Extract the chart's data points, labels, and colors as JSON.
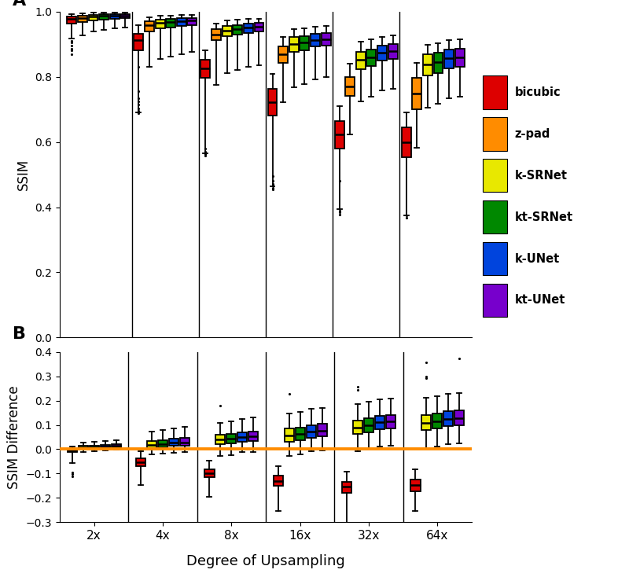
{
  "upsampling_factors": [
    "2x",
    "4x",
    "8x",
    "16x",
    "32x",
    "64x"
  ],
  "methods": [
    "bicubic",
    "z-pad",
    "k-SRNet",
    "kt-SRNet",
    "k-UNet",
    "kt-UNet"
  ],
  "colors": [
    "#dd0000",
    "#ff8c00",
    "#e8e800",
    "#008800",
    "#0044dd",
    "#7700cc"
  ],
  "panel_A": {
    "ylabel": "SSIM",
    "ylim": [
      0.0,
      1.0
    ],
    "yticks": [
      0.0,
      0.2,
      0.4,
      0.6,
      0.8,
      1.0
    ],
    "boxes": {
      "2x": {
        "bicubic": {
          "q1": 0.963,
          "med": 0.977,
          "q3": 0.984,
          "whislo": 0.918,
          "whishi": 0.993,
          "fliers_low": [
            0.87,
            0.88,
            0.885,
            0.895,
            0.905,
            0.91
          ],
          "fliers_high": []
        },
        "z-pad": {
          "q1": 0.968,
          "med": 0.981,
          "q3": 0.988,
          "whislo": 0.928,
          "whishi": 0.995,
          "fliers_low": [],
          "fliers_high": []
        },
        "k-SRNet": {
          "q1": 0.972,
          "med": 0.984,
          "q3": 0.99,
          "whislo": 0.938,
          "whishi": 0.996,
          "fliers_low": [],
          "fliers_high": []
        },
        "kt-SRNet": {
          "q1": 0.975,
          "med": 0.986,
          "q3": 0.991,
          "whislo": 0.944,
          "whishi": 0.997,
          "fliers_low": [],
          "fliers_high": []
        },
        "k-UNet": {
          "q1": 0.977,
          "med": 0.987,
          "q3": 0.992,
          "whislo": 0.948,
          "whishi": 0.997,
          "fliers_low": [],
          "fliers_high": []
        },
        "kt-UNet": {
          "q1": 0.979,
          "med": 0.988,
          "q3": 0.993,
          "whislo": 0.95,
          "whishi": 0.998,
          "fliers_low": [],
          "fliers_high": []
        }
      },
      "4x": {
        "bicubic": {
          "q1": 0.882,
          "med": 0.912,
          "q3": 0.932,
          "whislo": 0.69,
          "whishi": 0.958,
          "fliers_low": [
            0.687,
            0.695,
            0.703,
            0.714,
            0.725,
            0.735,
            0.755,
            0.83
          ],
          "fliers_high": []
        },
        "z-pad": {
          "q1": 0.938,
          "med": 0.958,
          "q3": 0.97,
          "whislo": 0.83,
          "whishi": 0.982,
          "fliers_low": [],
          "fliers_high": []
        },
        "k-SRNet": {
          "q1": 0.948,
          "med": 0.965,
          "q3": 0.975,
          "whislo": 0.855,
          "whishi": 0.987,
          "fliers_low": [],
          "fliers_high": []
        },
        "kt-SRNet": {
          "q1": 0.952,
          "med": 0.967,
          "q3": 0.977,
          "whislo": 0.862,
          "whishi": 0.988,
          "fliers_low": [],
          "fliers_high": []
        },
        "k-UNet": {
          "q1": 0.956,
          "med": 0.97,
          "q3": 0.979,
          "whislo": 0.87,
          "whishi": 0.989,
          "fliers_low": [],
          "fliers_high": []
        },
        "kt-UNet": {
          "q1": 0.958,
          "med": 0.972,
          "q3": 0.981,
          "whislo": 0.876,
          "whishi": 0.99,
          "fliers_low": [],
          "fliers_high": []
        }
      },
      "8x": {
        "bicubic": {
          "q1": 0.796,
          "med": 0.825,
          "q3": 0.852,
          "whislo": 0.565,
          "whishi": 0.882,
          "fliers_low": [
            0.558,
            0.562,
            0.57,
            0.58
          ],
          "fliers_high": []
        },
        "z-pad": {
          "q1": 0.912,
          "med": 0.93,
          "q3": 0.946,
          "whislo": 0.776,
          "whishi": 0.963,
          "fliers_low": [],
          "fliers_high": []
        },
        "k-SRNet": {
          "q1": 0.924,
          "med": 0.942,
          "q3": 0.956,
          "whislo": 0.812,
          "whishi": 0.972,
          "fliers_low": [],
          "fliers_high": []
        },
        "kt-SRNet": {
          "q1": 0.929,
          "med": 0.946,
          "q3": 0.959,
          "whislo": 0.82,
          "whishi": 0.974,
          "fliers_low": [],
          "fliers_high": []
        },
        "k-UNet": {
          "q1": 0.935,
          "med": 0.951,
          "q3": 0.963,
          "whislo": 0.83,
          "whishi": 0.977,
          "fliers_low": [],
          "fliers_high": []
        },
        "kt-UNet": {
          "q1": 0.938,
          "med": 0.953,
          "q3": 0.965,
          "whislo": 0.836,
          "whishi": 0.978,
          "fliers_low": [],
          "fliers_high": []
        }
      },
      "16x": {
        "bicubic": {
          "q1": 0.682,
          "med": 0.722,
          "q3": 0.762,
          "whislo": 0.465,
          "whishi": 0.808,
          "fliers_low": [
            0.455,
            0.46,
            0.466,
            0.472,
            0.48,
            0.495
          ],
          "fliers_high": []
        },
        "z-pad": {
          "q1": 0.843,
          "med": 0.868,
          "q3": 0.892,
          "whislo": 0.723,
          "whishi": 0.922,
          "fliers_low": [],
          "fliers_high": []
        },
        "k-SRNet": {
          "q1": 0.876,
          "med": 0.9,
          "q3": 0.922,
          "whislo": 0.768,
          "whishi": 0.946,
          "fliers_low": [],
          "fliers_high": []
        },
        "kt-SRNet": {
          "q1": 0.882,
          "med": 0.904,
          "q3": 0.924,
          "whislo": 0.778,
          "whishi": 0.948,
          "fliers_low": [],
          "fliers_high": []
        },
        "k-UNet": {
          "q1": 0.892,
          "med": 0.912,
          "q3": 0.932,
          "whislo": 0.793,
          "whishi": 0.954,
          "fliers_low": [],
          "fliers_high": []
        },
        "kt-UNet": {
          "q1": 0.896,
          "med": 0.916,
          "q3": 0.935,
          "whislo": 0.798,
          "whishi": 0.956,
          "fliers_low": [],
          "fliers_high": []
        }
      },
      "32x": {
        "bicubic": {
          "q1": 0.58,
          "med": 0.622,
          "q3": 0.664,
          "whislo": 0.395,
          "whishi": 0.71,
          "fliers_low": [
            0.378,
            0.384,
            0.39
          ],
          "fliers_high": [
            0.48
          ]
        },
        "z-pad": {
          "q1": 0.742,
          "med": 0.77,
          "q3": 0.8,
          "whislo": 0.622,
          "whishi": 0.84,
          "fliers_low": [],
          "fliers_high": []
        },
        "k-SRNet": {
          "q1": 0.824,
          "med": 0.852,
          "q3": 0.876,
          "whislo": 0.725,
          "whishi": 0.908,
          "fliers_low": [],
          "fliers_high": []
        },
        "kt-SRNet": {
          "q1": 0.834,
          "med": 0.86,
          "q3": 0.883,
          "whislo": 0.738,
          "whishi": 0.914,
          "fliers_low": [],
          "fliers_high": []
        },
        "k-UNet": {
          "q1": 0.85,
          "med": 0.874,
          "q3": 0.896,
          "whislo": 0.757,
          "whishi": 0.923,
          "fliers_low": [],
          "fliers_high": []
        },
        "kt-UNet": {
          "q1": 0.854,
          "med": 0.878,
          "q3": 0.9,
          "whislo": 0.763,
          "whishi": 0.926,
          "fliers_low": [],
          "fliers_high": []
        }
      },
      "64x": {
        "bicubic": {
          "q1": 0.552,
          "med": 0.598,
          "q3": 0.644,
          "whislo": 0.375,
          "whishi": 0.69,
          "fliers_low": [
            0.368,
            0.374
          ],
          "fliers_high": []
        },
        "z-pad": {
          "q1": 0.7,
          "med": 0.748,
          "q3": 0.796,
          "whislo": 0.582,
          "whishi": 0.842,
          "fliers_low": [],
          "fliers_high": []
        },
        "k-SRNet": {
          "q1": 0.803,
          "med": 0.838,
          "q3": 0.868,
          "whislo": 0.706,
          "whishi": 0.898,
          "fliers_low": [],
          "fliers_high": []
        },
        "kt-SRNet": {
          "q1": 0.81,
          "med": 0.844,
          "q3": 0.873,
          "whislo": 0.716,
          "whishi": 0.903,
          "fliers_low": [],
          "fliers_high": []
        },
        "k-UNet": {
          "q1": 0.826,
          "med": 0.856,
          "q3": 0.883,
          "whislo": 0.733,
          "whishi": 0.912,
          "fliers_low": [],
          "fliers_high": []
        },
        "kt-UNet": {
          "q1": 0.83,
          "med": 0.86,
          "q3": 0.886,
          "whislo": 0.738,
          "whishi": 0.914,
          "fliers_low": [],
          "fliers_high": []
        }
      }
    }
  },
  "panel_B": {
    "ylabel": "SSIM Difference",
    "ylim": [
      -0.3,
      0.4
    ],
    "yticks": [
      -0.3,
      -0.2,
      -0.1,
      0.0,
      0.1,
      0.2,
      0.3,
      0.4
    ],
    "hline_color": "#FF8C00",
    "boxes": {
      "2x": {
        "bicubic": {
          "q1": -0.013,
          "med": -0.005,
          "q3": 0.001,
          "whislo": -0.058,
          "whishi": 0.01,
          "fliers_low": [
            -0.095,
            -0.102,
            -0.112
          ],
          "fliers_high": []
        },
        "k-SRNet": {
          "q1": 0.002,
          "med": 0.007,
          "q3": 0.013,
          "whislo": -0.01,
          "whishi": 0.028,
          "fliers_low": [],
          "fliers_high": []
        },
        "kt-SRNet": {
          "q1": 0.004,
          "med": 0.009,
          "q3": 0.016,
          "whislo": -0.007,
          "whishi": 0.031,
          "fliers_low": [],
          "fliers_high": []
        },
        "k-UNet": {
          "q1": 0.006,
          "med": 0.011,
          "q3": 0.018,
          "whislo": -0.004,
          "whishi": 0.034,
          "fliers_low": [],
          "fliers_high": []
        },
        "kt-UNet": {
          "q1": 0.008,
          "med": 0.013,
          "q3": 0.02,
          "whislo": -0.002,
          "whishi": 0.036,
          "fliers_low": [],
          "fliers_high": []
        }
      },
      "4x": {
        "bicubic": {
          "q1": -0.068,
          "med": -0.052,
          "q3": -0.036,
          "whislo": -0.148,
          "whishi": -0.008,
          "fliers_low": [],
          "fliers_high": []
        },
        "k-SRNet": {
          "q1": 0.006,
          "med": 0.019,
          "q3": 0.034,
          "whislo": -0.022,
          "whishi": 0.072,
          "fliers_low": [],
          "fliers_high": []
        },
        "kt-SRNet": {
          "q1": 0.009,
          "med": 0.022,
          "q3": 0.038,
          "whislo": -0.018,
          "whishi": 0.078,
          "fliers_low": [],
          "fliers_high": []
        },
        "k-UNet": {
          "q1": 0.013,
          "med": 0.026,
          "q3": 0.043,
          "whislo": -0.014,
          "whishi": 0.086,
          "fliers_low": [],
          "fliers_high": []
        },
        "kt-UNet": {
          "q1": 0.016,
          "med": 0.028,
          "q3": 0.046,
          "whislo": -0.011,
          "whishi": 0.092,
          "fliers_low": [],
          "fliers_high": []
        }
      },
      "8x": {
        "bicubic": {
          "q1": -0.116,
          "med": -0.1,
          "q3": -0.083,
          "whislo": -0.195,
          "whishi": -0.048,
          "fliers_low": [],
          "fliers_high": []
        },
        "k-SRNet": {
          "q1": 0.02,
          "med": 0.04,
          "q3": 0.06,
          "whislo": -0.028,
          "whishi": 0.108,
          "fliers_low": [],
          "fliers_high": [
            0.178
          ]
        },
        "kt-SRNet": {
          "q1": 0.024,
          "med": 0.044,
          "q3": 0.064,
          "whislo": -0.023,
          "whishi": 0.115,
          "fliers_low": [],
          "fliers_high": []
        },
        "k-UNet": {
          "q1": 0.031,
          "med": 0.051,
          "q3": 0.071,
          "whislo": -0.013,
          "whishi": 0.125,
          "fliers_low": [],
          "fliers_high": []
        },
        "kt-UNet": {
          "q1": 0.034,
          "med": 0.054,
          "q3": 0.074,
          "whislo": -0.01,
          "whishi": 0.13,
          "fliers_low": [],
          "fliers_high": []
        }
      },
      "16x": {
        "bicubic": {
          "q1": -0.152,
          "med": -0.13,
          "q3": -0.11,
          "whislo": -0.255,
          "whishi": -0.068,
          "fliers_low": [],
          "fliers_high": []
        },
        "k-SRNet": {
          "q1": 0.032,
          "med": 0.058,
          "q3": 0.086,
          "whislo": -0.028,
          "whishi": 0.148,
          "fliers_low": [],
          "fliers_high": [
            0.228
          ]
        },
        "kt-SRNet": {
          "q1": 0.037,
          "med": 0.062,
          "q3": 0.09,
          "whislo": -0.022,
          "whishi": 0.155,
          "fliers_low": [],
          "fliers_high": []
        },
        "k-UNet": {
          "q1": 0.048,
          "med": 0.072,
          "q3": 0.1,
          "whislo": -0.008,
          "whishi": 0.166,
          "fliers_low": [],
          "fliers_high": []
        },
        "kt-UNet": {
          "q1": 0.052,
          "med": 0.076,
          "q3": 0.104,
          "whislo": -0.004,
          "whishi": 0.17,
          "fliers_low": [],
          "fliers_high": []
        }
      },
      "32x": {
        "bicubic": {
          "q1": -0.178,
          "med": -0.155,
          "q3": -0.135,
          "whislo": -0.306,
          "whishi": -0.092,
          "fliers_low": [],
          "fliers_high": []
        },
        "k-SRNet": {
          "q1": 0.062,
          "med": 0.09,
          "q3": 0.118,
          "whislo": -0.008,
          "whishi": 0.185,
          "fliers_low": [],
          "fliers_high": [
            0.245,
            0.256
          ]
        },
        "kt-SRNet": {
          "q1": 0.07,
          "med": 0.098,
          "q3": 0.126,
          "whislo": 0.0,
          "whishi": 0.194,
          "fliers_low": [],
          "fliers_high": []
        },
        "k-UNet": {
          "q1": 0.083,
          "med": 0.11,
          "q3": 0.138,
          "whislo": 0.012,
          "whishi": 0.206,
          "fliers_low": [],
          "fliers_high": []
        },
        "kt-UNet": {
          "q1": 0.087,
          "med": 0.114,
          "q3": 0.142,
          "whislo": 0.016,
          "whishi": 0.21,
          "fliers_low": [],
          "fliers_high": []
        }
      },
      "64x": {
        "bicubic": {
          "q1": -0.172,
          "med": -0.148,
          "q3": -0.126,
          "whislo": -0.255,
          "whishi": -0.082,
          "fliers_low": [],
          "fliers_high": []
        },
        "k-SRNet": {
          "q1": 0.078,
          "med": 0.108,
          "q3": 0.14,
          "whislo": 0.003,
          "whishi": 0.212,
          "fliers_low": [],
          "fliers_high": [
            0.292,
            0.3,
            0.358
          ]
        },
        "kt-SRNet": {
          "q1": 0.084,
          "med": 0.114,
          "q3": 0.146,
          "whislo": 0.01,
          "whishi": 0.218,
          "fliers_low": [],
          "fliers_high": []
        },
        "k-UNet": {
          "q1": 0.094,
          "med": 0.124,
          "q3": 0.156,
          "whislo": 0.02,
          "whishi": 0.228,
          "fliers_low": [],
          "fliers_high": []
        },
        "kt-UNet": {
          "q1": 0.098,
          "med": 0.128,
          "q3": 0.16,
          "whislo": 0.024,
          "whishi": 0.232,
          "fliers_low": [],
          "fliers_high": [
            0.372
          ]
        }
      }
    }
  },
  "xlabel": "Degree of Upsampling",
  "background_color": "#ffffff"
}
